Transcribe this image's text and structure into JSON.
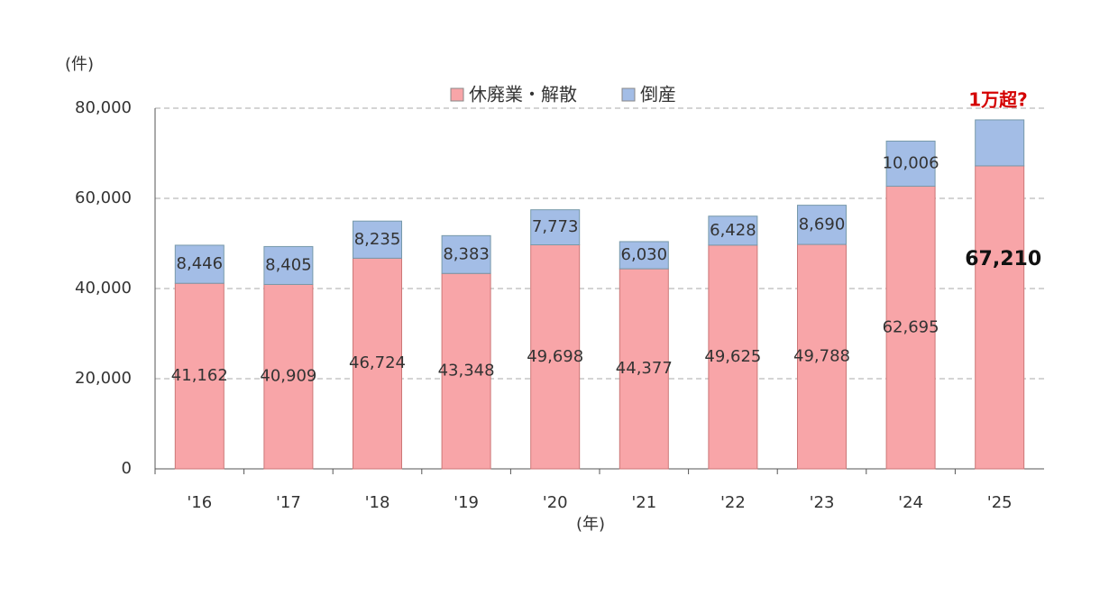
{
  "chart_data": {
    "type": "stacked-bar",
    "y_label": "(件)",
    "x_label": "(年)",
    "annotation": "1万超?",
    "categories": [
      "'16",
      "'17",
      "'18",
      "'19",
      "'20",
      "'21",
      "'22",
      "'23",
      "'24",
      "'25"
    ],
    "series": [
      {
        "name": "休廃業・解散",
        "color": "#f8a5a8",
        "values": [
          41162,
          40909,
          46724,
          43348,
          49698,
          44377,
          49625,
          49788,
          62695,
          67210
        ],
        "value_labels": [
          "41,162",
          "40,909",
          "46,724",
          "43,348",
          "49,698",
          "44,377",
          "49,625",
          "49,788",
          "62,695",
          "67,210"
        ]
      },
      {
        "name": "倒産",
        "color": "#a3bde6",
        "values": [
          8446,
          8405,
          8235,
          8383,
          7773,
          6030,
          6428,
          8690,
          10006,
          10200
        ],
        "value_labels": [
          "8,446",
          "8,405",
          "8,235",
          "8,383",
          "7,773",
          "6,030",
          "6,428",
          "8,690",
          "10,006",
          null
        ]
      }
    ],
    "ylim": [
      0,
      80000
    ],
    "yticks": [
      0,
      {
        "value": 20000,
        "label": "20,000"
      },
      {
        "value": 40000,
        "label": "40,000"
      },
      {
        "value": 60000,
        "label": "60,000"
      },
      {
        "value": 80000,
        "label": "80,000"
      }
    ],
    "grid": true
  }
}
